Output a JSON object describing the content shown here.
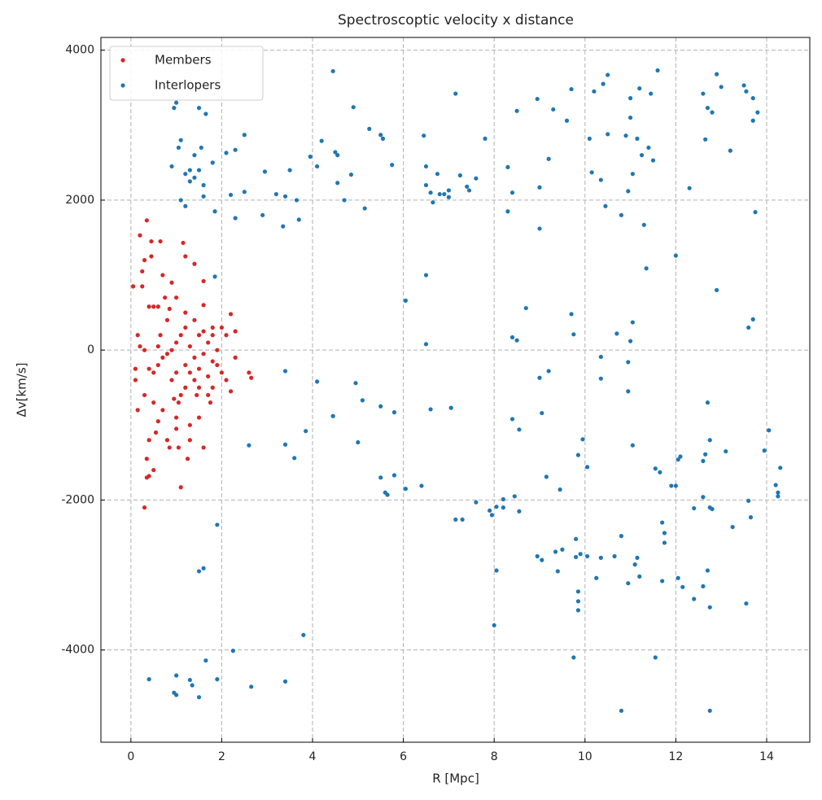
{
  "chart_data": {
    "type": "scatter",
    "title": "Spectroscoptic velocity x distance",
    "x_label": "R [Mpc]",
    "y_label": "Δv[km/s]",
    "xlim": [
      -0.66,
      14.95
    ],
    "ylim": [
      -5230,
      4170
    ],
    "xticks": [
      0,
      2,
      4,
      6,
      8,
      10,
      12,
      14
    ],
    "yticks": [
      -4000,
      -2000,
      0,
      2000,
      4000
    ],
    "grid": true,
    "legend": "upper-left",
    "series": [
      {
        "name": "Members",
        "color": "#d62728",
        "x": [
          0.05,
          0.1,
          0.1,
          0.15,
          0.2,
          0.25,
          0.25,
          0.3,
          0.3,
          0.35,
          0.35,
          0.3,
          0.4,
          0.35,
          0.4,
          0.45,
          0.45,
          0.5,
          0.4,
          0.5,
          0.6,
          0.6,
          0.65,
          0.7,
          0.75,
          0.8,
          0.85,
          0.9,
          0.95,
          1.0,
          1.05,
          1.1,
          1.15,
          1.2,
          1.3,
          1.4,
          1.5,
          1.6,
          1.7,
          1.8,
          2.0,
          2.2,
          2.3,
          2.6,
          2.65,
          0.5,
          0.6,
          0.7,
          0.8,
          0.9,
          1.0,
          1.1,
          1.2,
          1.3,
          1.4,
          1.5,
          1.6,
          1.7,
          1.8,
          1.9,
          2.0,
          2.1,
          2.2,
          2.3,
          1.2,
          1.3,
          1.4,
          1.5,
          1.6,
          1.7,
          1.8,
          1.0,
          0.9,
          1.1,
          1.2,
          0.2,
          0.3,
          0.4,
          0.6,
          0.8,
          1.0,
          1.2,
          1.4,
          1.6,
          1.8,
          1.5,
          1.3,
          1.0,
          0.7,
          0.55,
          1.6,
          2.1,
          0.15,
          1.9,
          1.75,
          1.45,
          0.85,
          0.65,
          1.05,
          1.25,
          0.5
        ],
        "values": [
          850,
          -400,
          -250,
          200,
          1530,
          850,
          1050,
          -600,
          1200,
          1730,
          -1700,
          -2100,
          -1680,
          -1450,
          -1200,
          1450,
          1250,
          -700,
          580,
          580,
          580,
          -950,
          1450,
          1000,
          700,
          -1200,
          -1300,
          900,
          -650,
          -900,
          -700,
          -1830,
          1430,
          1250,
          -1200,
          1150,
          -500,
          -1300,
          -600,
          -500,
          -300,
          480,
          250,
          -300,
          -370,
          -300,
          -200,
          -100,
          -50,
          0,
          100,
          200,
          300,
          50,
          -100,
          200,
          250,
          100,
          -150,
          0,
          300,
          -400,
          -550,
          -100,
          -200,
          -300,
          -400,
          -250,
          -50,
          -350,
          200,
          -300,
          -400,
          -600,
          -500,
          50,
          0,
          -250,
          50,
          400,
          700,
          500,
          400,
          600,
          300,
          -900,
          -1000,
          -1050,
          -800,
          -1100,
          920,
          200,
          -800,
          -200,
          -700,
          -600,
          550,
          200,
          -1300,
          -1450,
          -1600
        ]
      },
      {
        "name": "Interlopers",
        "color": "#1f77b4",
        "x": [
          0.9,
          1.0,
          0.95,
          1.05,
          1.1,
          1.1,
          1.2,
          1.2,
          1.3,
          1.3,
          1.4,
          1.4,
          1.5,
          1.5,
          1.55,
          1.6,
          1.6,
          1.65,
          1.8,
          1.85,
          2.1,
          2.2,
          2.3,
          2.3,
          2.5,
          2.5,
          2.9,
          2.95,
          3.2,
          3.35,
          3.4,
          3.5,
          3.65,
          3.7,
          3.95,
          4.1,
          4.2,
          4.45,
          4.5,
          4.55,
          4.55,
          4.7,
          4.85,
          4.9,
          5.15,
          5.25,
          5.5,
          5.55,
          5.75,
          6.45,
          6.5,
          6.5,
          6.6,
          6.65,
          6.75,
          6.8,
          6.9,
          7.0,
          7.0,
          7.15,
          7.25,
          7.4,
          7.45,
          7.6,
          7.8,
          8.3,
          8.3,
          8.4,
          8.5,
          8.95,
          9.0,
          9.0,
          9.2,
          9.3,
          9.6,
          9.7,
          10.1,
          10.15,
          10.2,
          10.35,
          10.4,
          10.45,
          10.5,
          10.5,
          10.8,
          10.9,
          11.0,
          10.95,
          11.0,
          11.05,
          11.15,
          11.2,
          11.25,
          11.3,
          11.4,
          11.45,
          11.5,
          11.6,
          12.0,
          12.3,
          12.6,
          12.65,
          12.7,
          12.8,
          12.9,
          13.0,
          13.2,
          13.5,
          13.55,
          13.7,
          13.7,
          13.8,
          13.75,
          1.85,
          3.4,
          4.1,
          6.05,
          6.5,
          6.5,
          8.4,
          8.5,
          8.7,
          9.7,
          9.75,
          10.35,
          10.7,
          10.95,
          11.0,
          11.05,
          11.35,
          12.9,
          13.6,
          13.7,
          9.0,
          9.2,
          10.35,
          10.95,
          4.45,
          4.95,
          5.1,
          5.5,
          5.8,
          6.6,
          7.05,
          8.4,
          8.55,
          9.05,
          2.6,
          3.4,
          3.6,
          3.85,
          5.0,
          9.85,
          9.95,
          10.05,
          11.05,
          11.55,
          11.65,
          12.05,
          12.1,
          12.65,
          12.7,
          12.75,
          13.1,
          13.95,
          14.05,
          14.3,
          14.2,
          14.25,
          14.25,
          12.6,
          5.5,
          5.6,
          5.65,
          5.8,
          6.05,
          6.4,
          7.15,
          7.3,
          7.6,
          7.9,
          7.95,
          8.05,
          8.2,
          8.2,
          8.45,
          8.55,
          9.15,
          9.45,
          11.7,
          11.75,
          11.75,
          11.9,
          12.0,
          12.4,
          12.6,
          12.75,
          12.8,
          13.25,
          13.6,
          13.65,
          1.9,
          8.05,
          8.95,
          9.05,
          9.35,
          9.4,
          9.5,
          9.8,
          9.8,
          9.9,
          10.05,
          10.25,
          10.35,
          10.65,
          10.8,
          10.95,
          11.1,
          11.15,
          11.2,
          11.7,
          12.05,
          12.15,
          12.4,
          12.6,
          12.7,
          12.75,
          13.55,
          9.85,
          9.85,
          9.85,
          1.5,
          1.6,
          3.8,
          8.0,
          9.75,
          11.55,
          1.65,
          2.25,
          0.4,
          0.95,
          1.0,
          1.0,
          1.3,
          1.35,
          1.5,
          1.9,
          2.65,
          3.4,
          10.8,
          12.75
        ],
        "values": [
          2450,
          3300,
          3230,
          2700,
          2800,
          2000,
          2350,
          1920,
          2400,
          2250,
          2600,
          2300,
          3230,
          2400,
          2700,
          2200,
          2050,
          3150,
          2500,
          1850,
          2630,
          2070,
          2670,
          1760,
          2870,
          2110,
          1800,
          2380,
          2080,
          1650,
          2050,
          2400,
          2000,
          1740,
          2580,
          2450,
          2790,
          3720,
          2640,
          2600,
          2230,
          2000,
          2340,
          3240,
          1890,
          2950,
          2870,
          2820,
          2470,
          2860,
          2450,
          2200,
          2100,
          1970,
          2350,
          2080,
          2080,
          2040,
          2130,
          3420,
          2330,
          2180,
          2130,
          2290,
          2820,
          2440,
          1850,
          2100,
          3190,
          3350,
          2170,
          1620,
          2550,
          3210,
          3060,
          3480,
          2820,
          2370,
          3450,
          2270,
          3550,
          1920,
          3670,
          2880,
          1800,
          2860,
          3360,
          2120,
          3100,
          2350,
          2820,
          3490,
          2600,
          1670,
          2700,
          3420,
          2530,
          3730,
          1260,
          2160,
          3420,
          2810,
          3230,
          3170,
          3680,
          3510,
          2660,
          3530,
          3450,
          3360,
          3060,
          3170,
          1840,
          980,
          -280,
          -420,
          660,
          1000,
          80,
          170,
          130,
          560,
          480,
          210,
          -90,
          220,
          -160,
          120,
          370,
          1090,
          800,
          300,
          410,
          -370,
          -280,
          -380,
          -550,
          -880,
          -440,
          -670,
          -750,
          -830,
          -790,
          -770,
          -920,
          -1060,
          -840,
          -1270,
          -1260,
          -1440,
          -1080,
          -1230,
          -1400,
          -1190,
          -1560,
          -1270,
          -1580,
          -1630,
          -1460,
          -1420,
          -1390,
          -700,
          -1200,
          -1350,
          -1340,
          -1070,
          -1570,
          -1800,
          -1900,
          -1950,
          -1480,
          -1700,
          -1900,
          -1930,
          -1670,
          -1850,
          -1810,
          -2260,
          -2260,
          -2030,
          -2140,
          -2200,
          -2090,
          -1990,
          -2100,
          -1950,
          -2150,
          -1690,
          -1860,
          -2300,
          -2440,
          -2570,
          -1810,
          -1810,
          -2110,
          -1960,
          -2100,
          -2120,
          -2360,
          -2010,
          -2230,
          -2330,
          -2940,
          -2750,
          -2800,
          -2690,
          -2950,
          -2660,
          -2520,
          -2760,
          -2720,
          -2750,
          -3040,
          -2770,
          -2750,
          -2480,
          -3110,
          -2860,
          -2770,
          -3020,
          -3080,
          -3040,
          -3160,
          -3320,
          -3150,
          -2940,
          -3430,
          -3380,
          -3220,
          -3350,
          -3470,
          -2950,
          -2910,
          -3800,
          -3670,
          -4100,
          -4100,
          -4140,
          -4010,
          -4390,
          -4570,
          -4600,
          -4340,
          -4400,
          -4470,
          -4630,
          -4390,
          -4490,
          -4420,
          -4810,
          -4810
        ]
      }
    ]
  }
}
